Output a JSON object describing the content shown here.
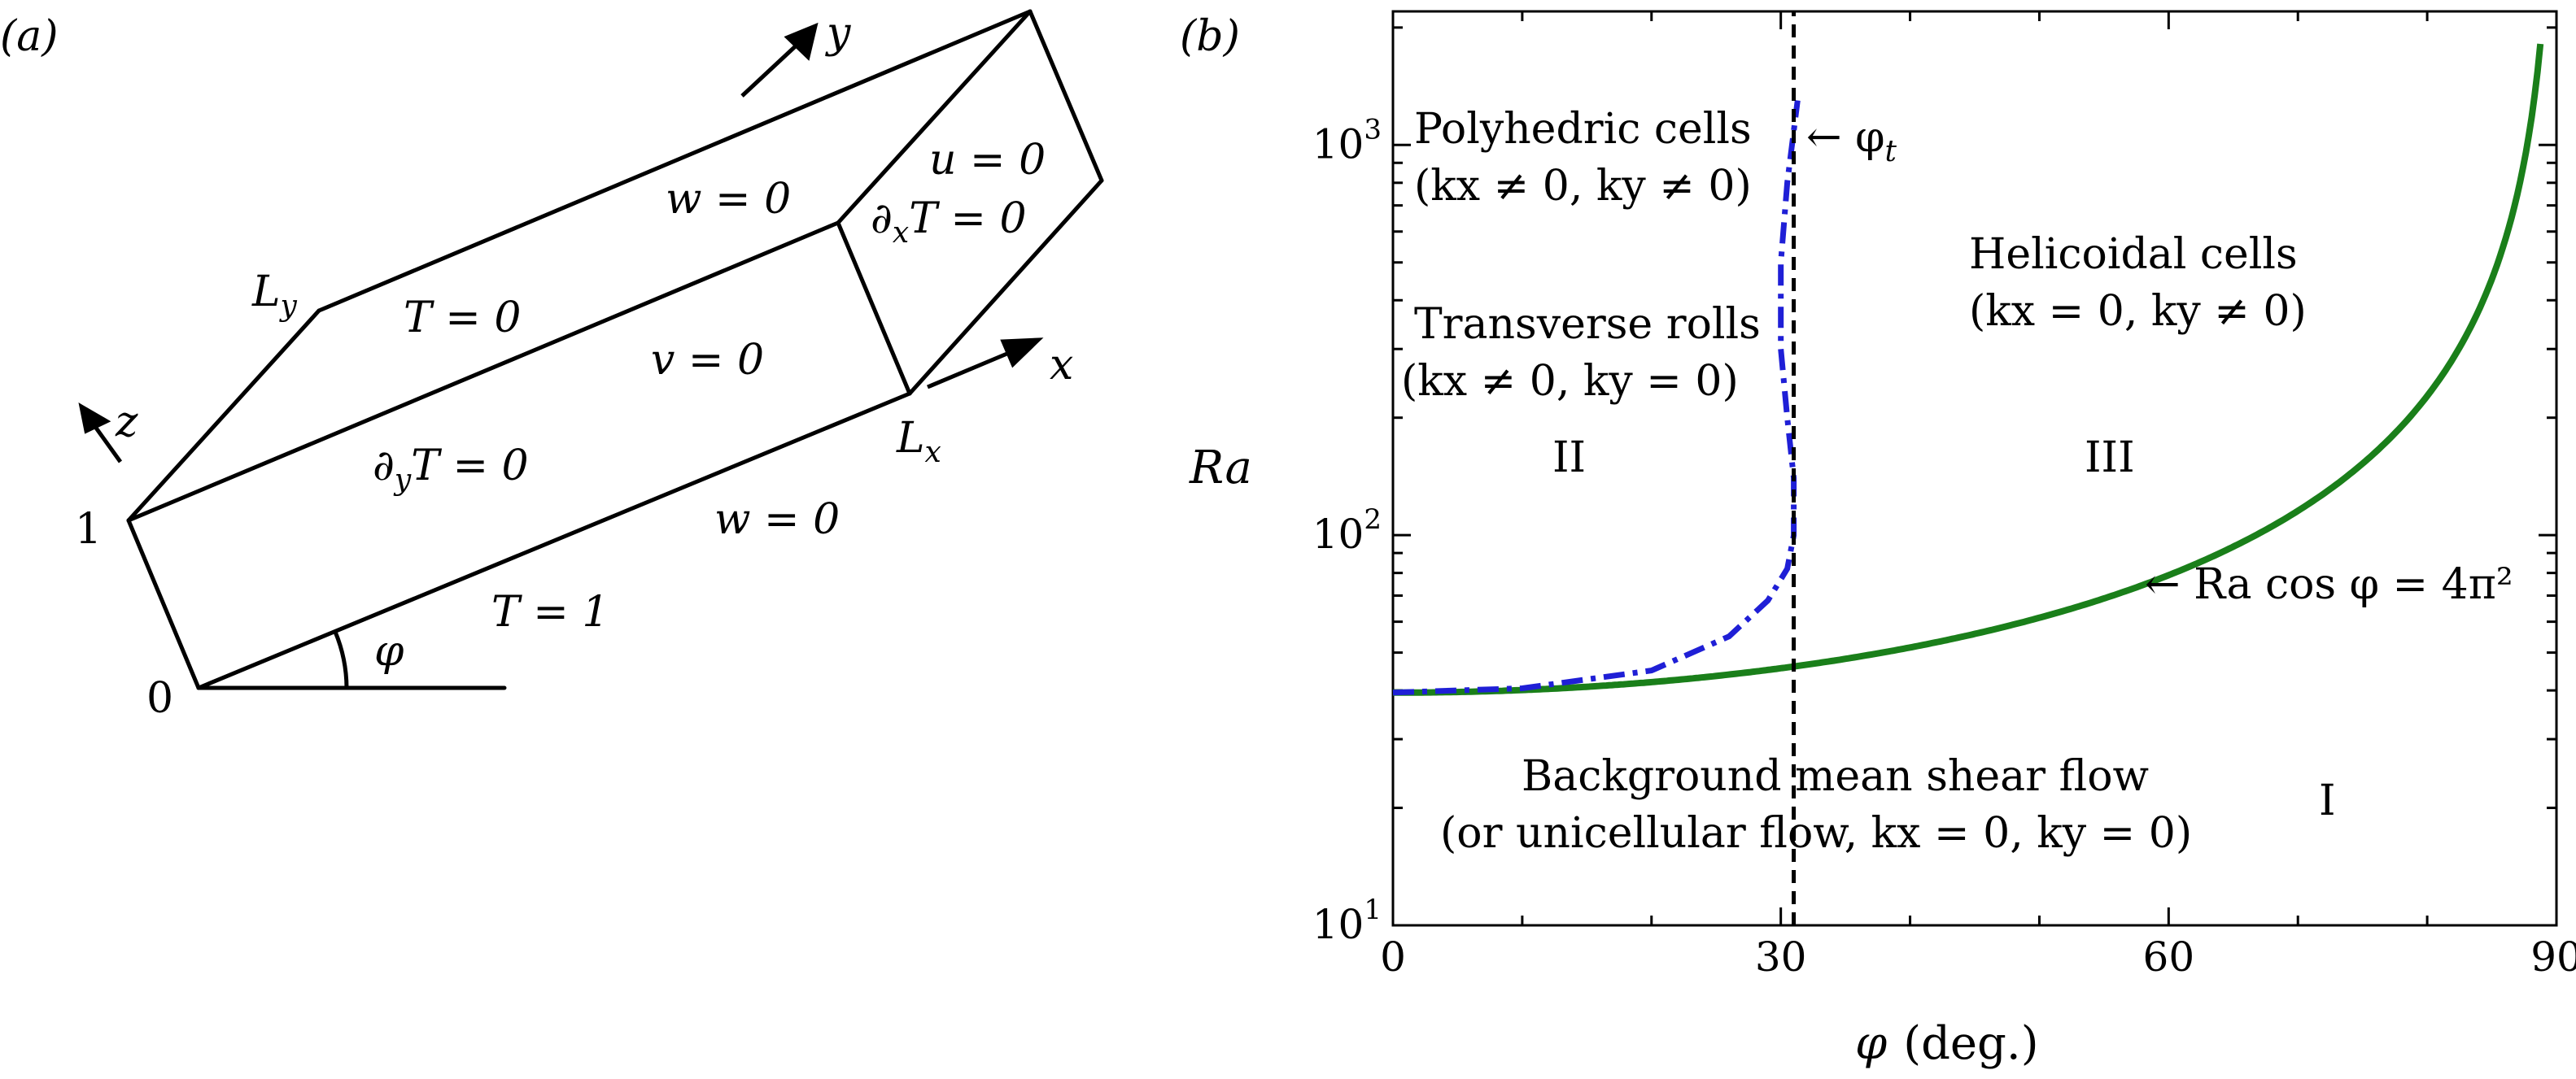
{
  "panel_a": {
    "label": "(a)",
    "axis_y": "y",
    "axis_x": "x",
    "axis_z": "z",
    "corner_ly": "L",
    "corner_ly_sub": "y",
    "corner_lx": "L",
    "corner_lx_sub": "x",
    "one": "1",
    "zero": "0",
    "angle": "φ",
    "bc_top_w": "w = 0",
    "bc_top_T": "T = 0",
    "bc_front_v": "v = 0",
    "bc_side_u": "u = 0",
    "bc_side_dxT": "∂",
    "bc_side_dxT_sub": "x",
    "bc_side_dxT_rest": "T = 0",
    "bc_back_dyT": "∂",
    "bc_back_dyT_sub": "y",
    "bc_back_dyT_rest": "T = 0",
    "bc_bottom_w": "w = 0",
    "bc_bottom_T": "T = 1"
  },
  "panel_b": {
    "label": "(b)",
    "ylabel": "Ra",
    "xlabel_sym": "φ",
    "xlabel_unit": "(deg.)",
    "phi_t": "← φ",
    "phi_t_sub": "t",
    "curve_label": "← Ra cos φ = 4π²",
    "region_I": "I",
    "region_II": "II",
    "region_III": "III",
    "polyhedric_1": "Polyhedric cells",
    "polyhedric_2": "(kx ≠ 0, ky ≠ 0)",
    "transverse_1": "Transverse rolls",
    "transverse_2": "(kx ≠ 0, ky = 0)",
    "helicoidal_1": "Helicoidal cells",
    "helicoidal_2": "(kx = 0, ky ≠ 0)",
    "background_1": "Background mean shear flow",
    "background_2": "(or unicellular flow, kx = 0, ky = 0)"
  },
  "chart_data": {
    "type": "line",
    "xlabel": "φ (deg.)",
    "ylabel": "Ra",
    "xlim": [
      0,
      90
    ],
    "ylim": [
      10,
      2200
    ],
    "yscale": "log",
    "x_ticks": [
      "0",
      "30",
      "60",
      "90"
    ],
    "y_ticks": [
      "10",
      "10",
      "10"
    ],
    "y_tick_exponents": [
      "1",
      "2",
      "3"
    ],
    "grid": false,
    "series": [
      {
        "name": "Ra cos φ = 4π²",
        "color": "#1a7f1a",
        "x": [
          0,
          10,
          20,
          30,
          40,
          50,
          60,
          70,
          75,
          80,
          85,
          87,
          88,
          89
        ],
        "y": [
          39.5,
          40.1,
          42.0,
          45.6,
          51.5,
          61.4,
          79.0,
          115.4,
          152.5,
          227.3,
          452.9,
          754.5,
          1131.5,
          2261.9
        ]
      },
      {
        "name": "",
        "color": "#1f1fd6",
        "x": [
          0,
          10,
          20,
          26,
          29,
          30.5,
          31,
          31,
          30.5,
          30,
          30,
          30.5,
          31.3
        ],
        "y": [
          39.5,
          40.5,
          45,
          55,
          68,
          82,
          100,
          140,
          200,
          300,
          500,
          800,
          1300
        ]
      },
      {
        "name": "φt",
        "color": "#000000",
        "x": [
          31,
          31
        ],
        "y": [
          10,
          2200
        ]
      }
    ]
  }
}
